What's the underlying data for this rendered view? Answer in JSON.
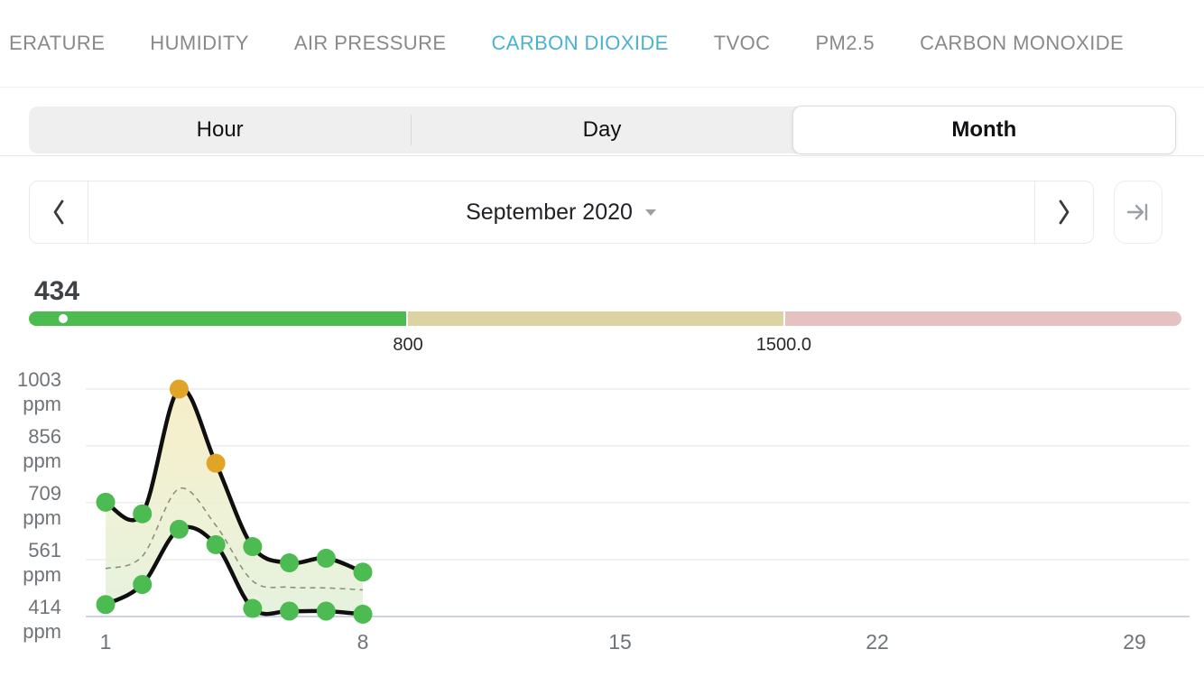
{
  "tabs": {
    "items": [
      {
        "label": "ERATURE",
        "active": false
      },
      {
        "label": "HUMIDITY",
        "active": false
      },
      {
        "label": "AIR PRESSURE",
        "active": false
      },
      {
        "label": "CARBON DIOXIDE",
        "active": true
      },
      {
        "label": "TVOC",
        "active": false
      },
      {
        "label": "PM2.5",
        "active": false
      },
      {
        "label": "CARBON MONOXIDE",
        "active": false
      }
    ],
    "active_color": "#49b2d2",
    "inactive_color": "#87898c"
  },
  "period_switcher": {
    "options": [
      "Hour",
      "Day",
      "Month"
    ],
    "selected": "Month"
  },
  "date_nav": {
    "label": "September 2020"
  },
  "reading": {
    "value": "434",
    "gauge": {
      "segments": [
        {
          "name": "good",
          "color": "#4cbc51",
          "width_pct": 32.8
        },
        {
          "name": "moderate",
          "color": "#dcd3a2",
          "width_pct": 32.7
        },
        {
          "name": "bad",
          "color": "#e5c1c1",
          "width_pct": 34.5
        }
      ],
      "markers": [
        {
          "label": "800",
          "pct": 33.0
        },
        {
          "label": "1500.0",
          "pct": 65.7
        }
      ],
      "indicator_pct": 3.0
    }
  },
  "chart_data": {
    "type": "area",
    "unit": "ppm",
    "x": [
      1,
      2,
      3,
      4,
      5,
      6,
      7,
      8
    ],
    "series": [
      {
        "name": "max",
        "values": [
          710,
          680,
          1003,
          811,
          595,
          553,
          565,
          529
        ],
        "style": "solid",
        "points": true
      },
      {
        "name": "avg",
        "values": [
          538,
          570,
          745,
          650,
          506,
          490,
          488,
          483
        ],
        "style": "dashed",
        "points": false
      },
      {
        "name": "min",
        "values": [
          445,
          497,
          640,
          600,
          435,
          428,
          428,
          420
        ],
        "style": "solid",
        "points": true
      }
    ],
    "yticks": [
      1003,
      856,
      709,
      561,
      414
    ],
    "xticks": [
      1,
      8,
      15,
      22,
      29
    ],
    "ylim": [
      414,
      1003
    ],
    "xlim": [
      1,
      30.4
    ],
    "grid": true,
    "legend": "none",
    "point_color_threshold": 800,
    "style": {
      "line_color": "#0f0f0f",
      "avg_color": "#90907f",
      "band_top": "#f6ecc3",
      "band_mid": "#eef0d0",
      "band_bottom": "#e2f0db",
      "dot_below": "#4cbb51",
      "dot_above": "#e0a526",
      "grid_color": "#ececee",
      "axis_color": "#ccd3de"
    }
  }
}
